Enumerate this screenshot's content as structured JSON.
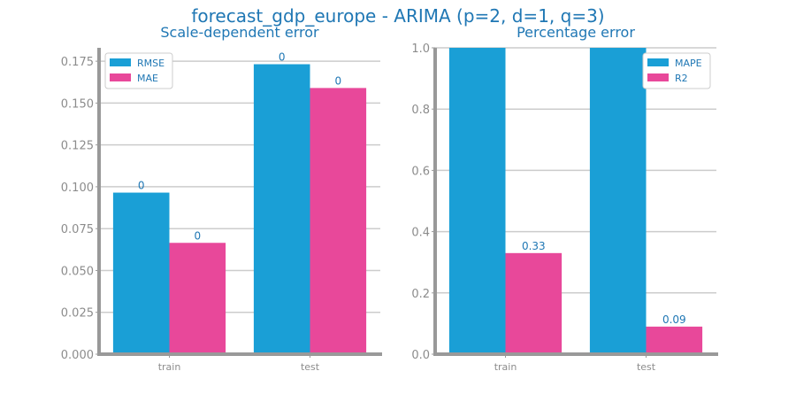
{
  "figure": {
    "title": "forecast_gdp_europe - ARIMA (p=2, d=1, q=3)"
  },
  "colors": {
    "accent_text": "#1f77b4",
    "series_blue": "#1a9fd6",
    "series_pink": "#e8489a",
    "axis": "#999999",
    "grid": "#cccccc",
    "tick_text": "#8c8c8c"
  },
  "chart_data": [
    {
      "type": "bar",
      "title": "Scale-dependent error",
      "xlabel": "",
      "ylabel": "",
      "categories": [
        "train",
        "test"
      ],
      "series": [
        {
          "name": "RMSE",
          "values": [
            0.0965,
            0.1732
          ],
          "labels": [
            "0",
            "0"
          ]
        },
        {
          "name": "MAE",
          "values": [
            0.0665,
            0.159
          ],
          "labels": [
            "0",
            "0"
          ]
        }
      ],
      "ylim": [
        0,
        0.183
      ],
      "yticks": [
        0.0,
        0.025,
        0.05,
        0.075,
        0.1,
        0.125,
        0.15,
        0.175
      ],
      "ytick_labels": [
        "0.000",
        "0.025",
        "0.050",
        "0.075",
        "0.100",
        "0.125",
        "0.150",
        "0.175"
      ],
      "grid": true,
      "legend": "top-left"
    },
    {
      "type": "bar",
      "title": "Percentage error",
      "xlabel": "",
      "ylabel": "",
      "categories": [
        "train",
        "test"
      ],
      "series": [
        {
          "name": "MAPE",
          "values": [
            1.0,
            1.0
          ],
          "labels": [
            "",
            ""
          ]
        },
        {
          "name": "R2",
          "values": [
            0.33,
            0.09
          ],
          "labels": [
            "0.33",
            "0.09"
          ]
        }
      ],
      "ylim": [
        0,
        1.0
      ],
      "yticks": [
        0.0,
        0.2,
        0.4,
        0.6,
        0.8,
        1.0
      ],
      "ytick_labels": [
        "0.0",
        "0.2",
        "0.4",
        "0.6",
        "0.8",
        "1.0"
      ],
      "grid": true,
      "legend": "top-right"
    }
  ]
}
